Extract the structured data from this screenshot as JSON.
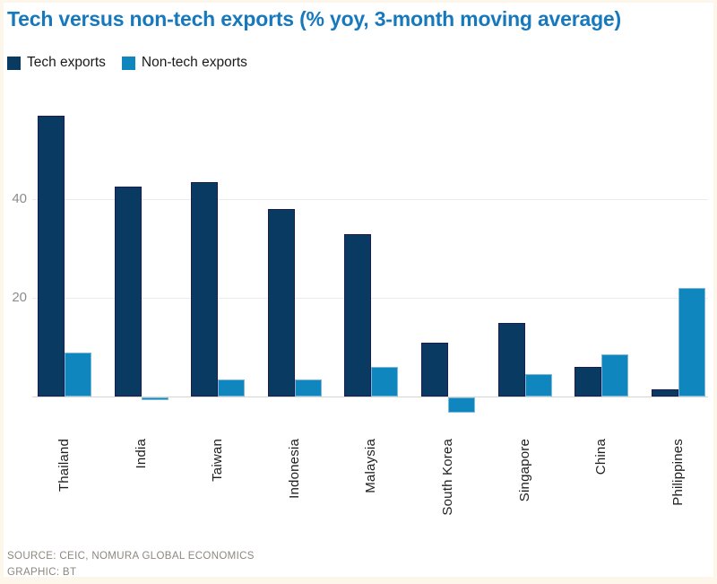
{
  "title": "Tech versus non-tech exports (% yoy, 3-month moving average)",
  "footer": {
    "source": "SOURCE: CEIC, NOMURA GLOBAL ECONOMICS",
    "graphic": "GRAPHIC: BT"
  },
  "colors": {
    "title": "#1779bd",
    "page_background": "#fdf6ea",
    "card_background": "#ffffff",
    "tech_fill": "#093a61",
    "tech_border": "#1d1b4f",
    "non_tech_fill": "#0f86bd",
    "non_tech_border": "#7db9da",
    "gridline": "#ebebe8",
    "baseline": "#d5d5d1",
    "axis_text": "#8c8c8c",
    "label_text": "#1f1f1f",
    "footer_text": "#8d887e"
  },
  "chart_data": {
    "type": "bar",
    "title": "Tech versus non-tech exports (% yoy, 3-month moving average)",
    "categories": [
      "Thailand",
      "India",
      "Taiwan",
      "Indonesia",
      "Malaysia",
      "South Korea",
      "Singapore",
      "China",
      "Philippines"
    ],
    "series": [
      {
        "name": "Tech exports",
        "color": "#093a61",
        "border": "#1d1b4f",
        "values": [
          57,
          42.5,
          43.5,
          38,
          33,
          11,
          15,
          6,
          1.5
        ]
      },
      {
        "name": "Non-tech exports",
        "color": "#0f86bd",
        "border": "#7db9da",
        "values": [
          9,
          -0.5,
          3.5,
          3.5,
          6,
          -3,
          4.5,
          8.5,
          22
        ]
      }
    ],
    "xlabel": "",
    "ylabel": "% yoy, 3-month moving average",
    "yticks": [
      20,
      40
    ],
    "gridlines": [
      0,
      20,
      40
    ],
    "ylim": [
      -5,
      60
    ],
    "grid": true,
    "legend_position": "top-left"
  }
}
